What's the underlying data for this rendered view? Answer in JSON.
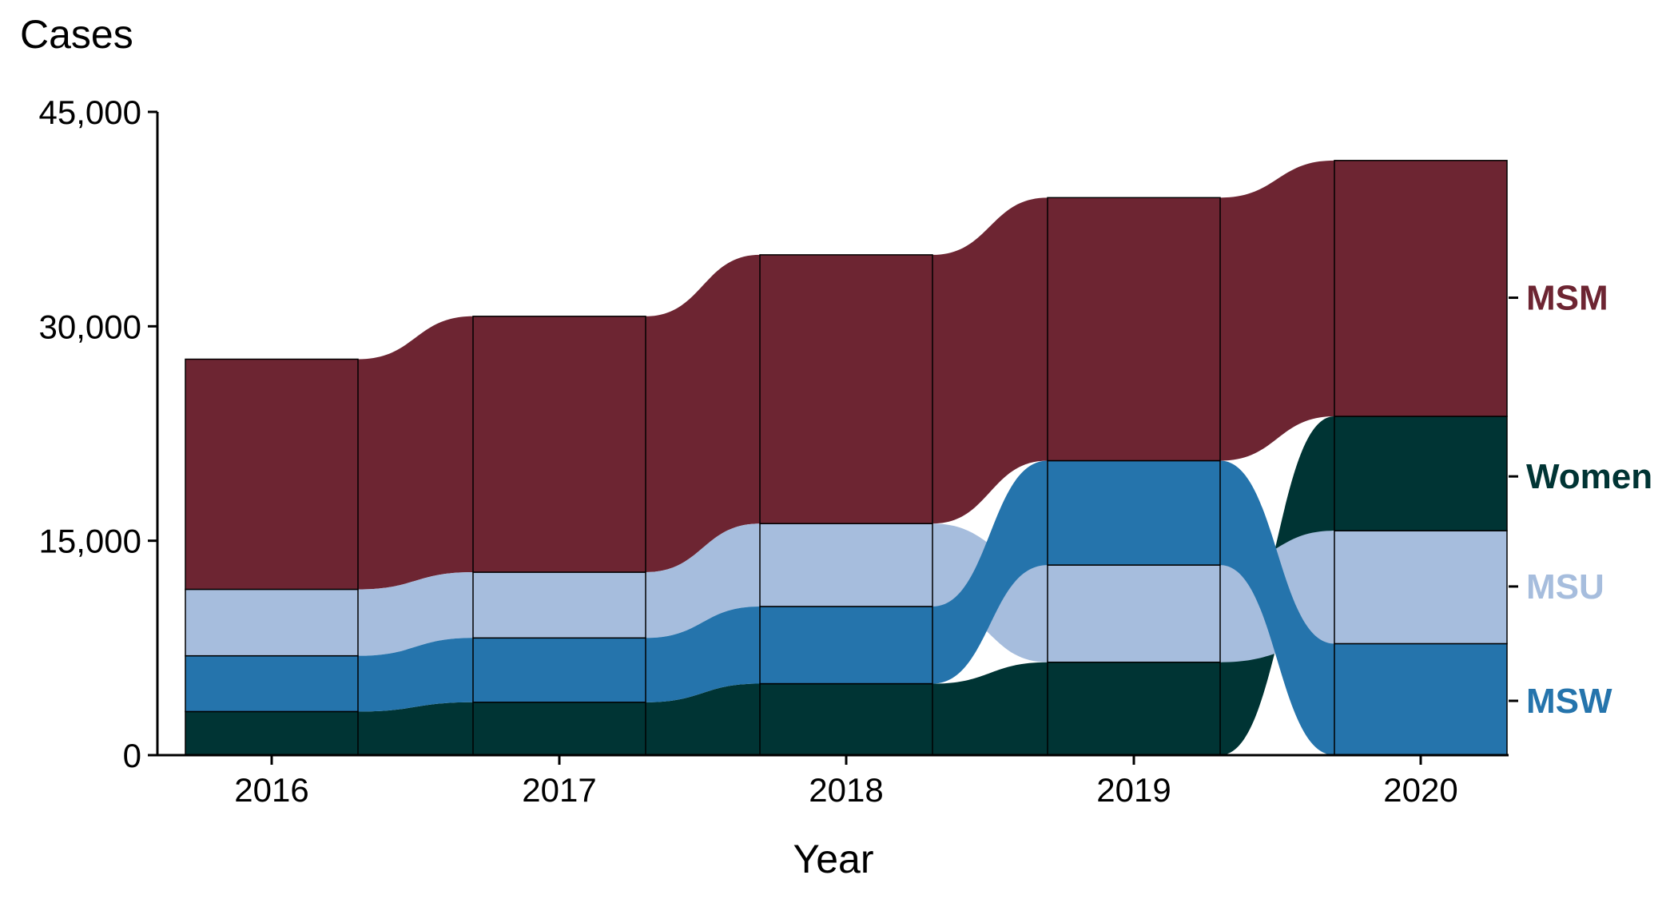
{
  "chart_data": {
    "type": "bump-area",
    "title": "",
    "ylabel": "Cases",
    "xlabel": "Year",
    "ylim": [
      0,
      45000
    ],
    "yticks": [
      0,
      15000,
      30000,
      45000
    ],
    "ytick_labels": [
      "0",
      "15,000",
      "30,000",
      "45,000"
    ],
    "categories": [
      "2016",
      "2017",
      "2018",
      "2019",
      "2020"
    ],
    "series": [
      {
        "name": "MSM",
        "color": "#6d2532",
        "values": [
          16100,
          17900,
          18800,
          18400,
          17900
        ],
        "label_position": 32000
      },
      {
        "name": "Women",
        "color": "#003434",
        "values": [
          3050,
          3700,
          5000,
          6500,
          8000
        ],
        "label_position": 19500
      },
      {
        "name": "MSU",
        "color": "#a6bddd",
        "values": [
          4650,
          4600,
          5800,
          6800,
          7900
        ],
        "label_position": 11800
      },
      {
        "name": "MSW",
        "color": "#2574ac",
        "values": [
          3900,
          4500,
          5400,
          7300,
          7800
        ],
        "label_position": 3800
      }
    ],
    "stack_order_bottom_to_top": [
      [
        "Women",
        "MSW",
        "MSU",
        "MSM"
      ],
      [
        "Women",
        "MSW",
        "MSU",
        "MSM"
      ],
      [
        "Women",
        "MSW",
        "MSU",
        "MSM"
      ],
      [
        "Women",
        "MSU",
        "MSW",
        "MSM"
      ],
      [
        "MSW",
        "MSU",
        "Women",
        "MSM"
      ]
    ]
  }
}
